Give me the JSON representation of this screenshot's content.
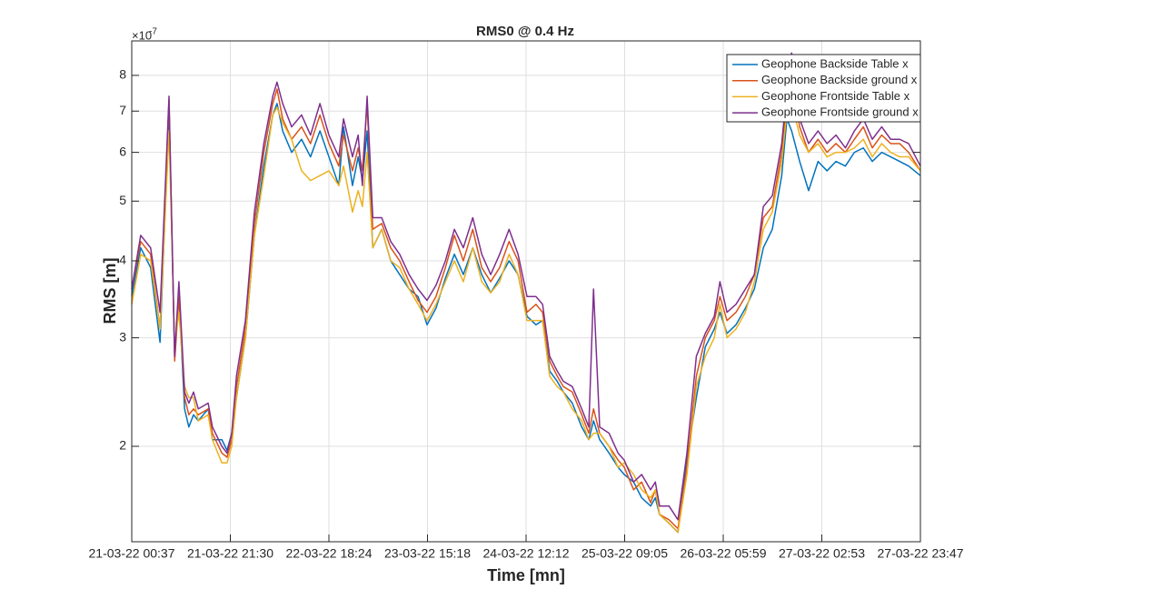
{
  "chart_data": {
    "type": "line",
    "title": "RMS0 @ 0.4 Hz",
    "xlabel": "Time [mn]",
    "ylabel": "RMS [m]",
    "y_exponent": {
      "base": "×10",
      "power": "-7"
    },
    "log_scale_y": true,
    "grid": true,
    "legend_position": "northeast",
    "xlim": [
      0,
      167.2
    ],
    "xticks": [
      {
        "value": 0,
        "label": "21-03-22 00:37"
      },
      {
        "value": 20.9,
        "label": "21-03-22 21:30"
      },
      {
        "value": 41.8,
        "label": "22-03-22 18:24"
      },
      {
        "value": 62.7,
        "label": "23-03-22 15:18"
      },
      {
        "value": 83.6,
        "label": "24-03-22 12:12"
      },
      {
        "value": 104.5,
        "label": "25-03-22 09:05"
      },
      {
        "value": 125.4,
        "label": "26-03-22 05:59"
      },
      {
        "value": 146.3,
        "label": "27-03-22 02:53"
      },
      {
        "value": 167.2,
        "label": "27-03-22 23:47"
      }
    ],
    "ylim": [
      1.4,
      9.1
    ],
    "yticks": [
      2,
      3,
      4,
      5,
      6,
      7,
      8
    ],
    "x": [
      0,
      1.9,
      4.0,
      6.0,
      7.9,
      9.1,
      10.0,
      11.2,
      12.1,
      13.1,
      14.1,
      16.2,
      17.1,
      19.1,
      20.2,
      21.2,
      22.2,
      24.1,
      26.0,
      28.0,
      29.9,
      30.8,
      32.0,
      33.9,
      36.0,
      37.9,
      39.9,
      41.8,
      43.9,
      44.9,
      46.8,
      48.0,
      48.9,
      49.9,
      51.1,
      53.0,
      54.9,
      56.8,
      58.8,
      60.7,
      62.6,
      64.5,
      66.5,
      68.4,
      70.3,
      72.3,
      74.2,
      76.1,
      78.0,
      80.0,
      81.9,
      83.8,
      85.7,
      87.1,
      88.6,
      90.2,
      91.5,
      93.4,
      95.4,
      96.9,
      97.9,
      99.2,
      101.2,
      103.1,
      104.4,
      106.4,
      108.1,
      110.0,
      111.0,
      111.9,
      113.9,
      115.8,
      117.7,
      119.7,
      121.6,
      123.5,
      124.7,
      126.2,
      128.1,
      130.1,
      132.0,
      133.9,
      135.8,
      137.8,
      138.9,
      139.9,
      141.6,
      143.5,
      145.5,
      147.4,
      149.3,
      151.3,
      153.2,
      155.1,
      157.0,
      159.0,
      160.9,
      162.8,
      164.7,
      167.2
    ],
    "series": [
      {
        "name": "Geophone Backside Table x",
        "color": "#0072bd",
        "values": [
          3.5,
          4.2,
          3.9,
          2.95,
          7.0,
          2.8,
          3.5,
          2.3,
          2.15,
          2.25,
          2.2,
          2.3,
          2.05,
          2.05,
          1.97,
          2.1,
          2.4,
          3.0,
          4.4,
          5.7,
          6.9,
          7.2,
          6.5,
          6.0,
          6.3,
          5.9,
          6.5,
          5.9,
          5.3,
          6.6,
          5.3,
          5.9,
          5.4,
          6.5,
          4.2,
          4.5,
          4.0,
          3.8,
          3.6,
          3.5,
          3.15,
          3.35,
          3.75,
          4.1,
          3.8,
          4.2,
          3.8,
          3.55,
          3.75,
          4.0,
          3.8,
          3.25,
          3.15,
          3.2,
          2.65,
          2.55,
          2.45,
          2.35,
          2.15,
          2.05,
          2.2,
          2.05,
          1.95,
          1.85,
          1.8,
          1.75,
          1.65,
          1.6,
          1.65,
          1.55,
          1.5,
          1.45,
          1.9,
          2.4,
          2.9,
          3.1,
          3.3,
          3.05,
          3.15,
          3.35,
          3.6,
          4.2,
          4.5,
          5.5,
          6.8,
          6.5,
          5.8,
          5.2,
          5.8,
          5.6,
          5.8,
          5.7,
          6.0,
          6.1,
          5.8,
          6.0,
          5.9,
          5.8,
          5.7,
          5.5
        ]
      },
      {
        "name": "Geophone Backside ground x",
        "color": "#d95319",
        "values": [
          3.6,
          4.3,
          4.1,
          3.1,
          7.3,
          2.75,
          3.5,
          2.4,
          2.25,
          2.3,
          2.25,
          2.3,
          2.1,
          1.95,
          1.92,
          2.05,
          2.5,
          3.1,
          4.6,
          6.0,
          7.2,
          7.6,
          6.8,
          6.3,
          6.6,
          6.2,
          6.9,
          6.2,
          5.7,
          6.4,
          5.6,
          6.1,
          5.6,
          7.2,
          4.5,
          4.6,
          4.2,
          4.0,
          3.7,
          3.45,
          3.3,
          3.5,
          3.9,
          4.4,
          4.0,
          4.5,
          3.9,
          3.7,
          3.9,
          4.3,
          4.0,
          3.3,
          3.4,
          3.3,
          2.75,
          2.6,
          2.5,
          2.45,
          2.25,
          2.1,
          2.3,
          2.1,
          2.0,
          1.9,
          1.85,
          1.7,
          1.75,
          1.62,
          1.7,
          1.55,
          1.52,
          1.47,
          1.85,
          2.6,
          3.0,
          3.2,
          3.5,
          3.2,
          3.3,
          3.5,
          3.8,
          4.7,
          4.9,
          6.0,
          7.3,
          8.0,
          6.6,
          6.0,
          6.3,
          6.0,
          6.2,
          6.0,
          6.3,
          6.6,
          6.1,
          6.4,
          6.2,
          6.2,
          6.0,
          5.6
        ]
      },
      {
        "name": "Geophone Frontside Table x",
        "color": "#edb120",
        "values": [
          3.4,
          4.1,
          4.0,
          3.1,
          6.5,
          2.9,
          3.3,
          2.5,
          2.4,
          2.4,
          2.2,
          2.25,
          2.05,
          1.88,
          1.88,
          2.0,
          2.4,
          3.0,
          4.4,
          5.5,
          6.9,
          7.1,
          6.7,
          6.3,
          5.6,
          5.4,
          5.5,
          5.6,
          5.3,
          5.7,
          4.8,
          5.2,
          4.9,
          6.0,
          4.2,
          4.5,
          4.0,
          3.9,
          3.6,
          3.4,
          3.2,
          3.4,
          3.7,
          4.0,
          3.7,
          4.2,
          3.7,
          3.55,
          3.7,
          4.1,
          3.8,
          3.2,
          3.2,
          3.2,
          2.6,
          2.5,
          2.45,
          2.3,
          2.2,
          2.05,
          2.1,
          2.1,
          2.0,
          1.85,
          1.88,
          1.8,
          1.7,
          1.65,
          1.7,
          1.55,
          1.5,
          1.45,
          1.8,
          2.5,
          2.8,
          3.0,
          3.4,
          3.0,
          3.1,
          3.3,
          3.7,
          4.5,
          4.8,
          5.8,
          7.0,
          7.2,
          6.4,
          6.0,
          6.2,
          5.9,
          6.0,
          6.0,
          6.1,
          6.3,
          5.9,
          6.2,
          6.0,
          5.9,
          5.9,
          5.6
        ]
      },
      {
        "name": "Geophone Frontside ground x",
        "color": "#7e2f8e",
        "values": [
          3.6,
          4.4,
          4.2,
          3.3,
          7.4,
          2.8,
          3.7,
          2.45,
          2.35,
          2.45,
          2.3,
          2.35,
          2.15,
          2.0,
          1.95,
          2.1,
          2.6,
          3.2,
          4.8,
          6.2,
          7.4,
          7.8,
          7.2,
          6.6,
          6.9,
          6.4,
          7.2,
          6.4,
          5.9,
          6.8,
          5.9,
          6.4,
          5.3,
          7.4,
          4.7,
          4.7,
          4.3,
          4.1,
          3.8,
          3.6,
          3.45,
          3.65,
          4.0,
          4.5,
          4.2,
          4.7,
          4.1,
          3.8,
          4.1,
          4.5,
          4.1,
          3.5,
          3.5,
          3.4,
          2.8,
          2.65,
          2.55,
          2.5,
          2.3,
          2.15,
          3.6,
          2.15,
          2.1,
          1.95,
          1.9,
          1.75,
          1.8,
          1.7,
          1.75,
          1.6,
          1.6,
          1.52,
          1.95,
          2.8,
          3.05,
          3.25,
          3.7,
          3.3,
          3.4,
          3.6,
          3.8,
          4.9,
          5.1,
          6.2,
          7.6,
          8.7,
          6.8,
          6.2,
          6.5,
          6.2,
          6.4,
          6.1,
          6.5,
          6.8,
          6.3,
          6.6,
          6.3,
          6.3,
          6.2,
          5.7
        ]
      }
    ]
  }
}
